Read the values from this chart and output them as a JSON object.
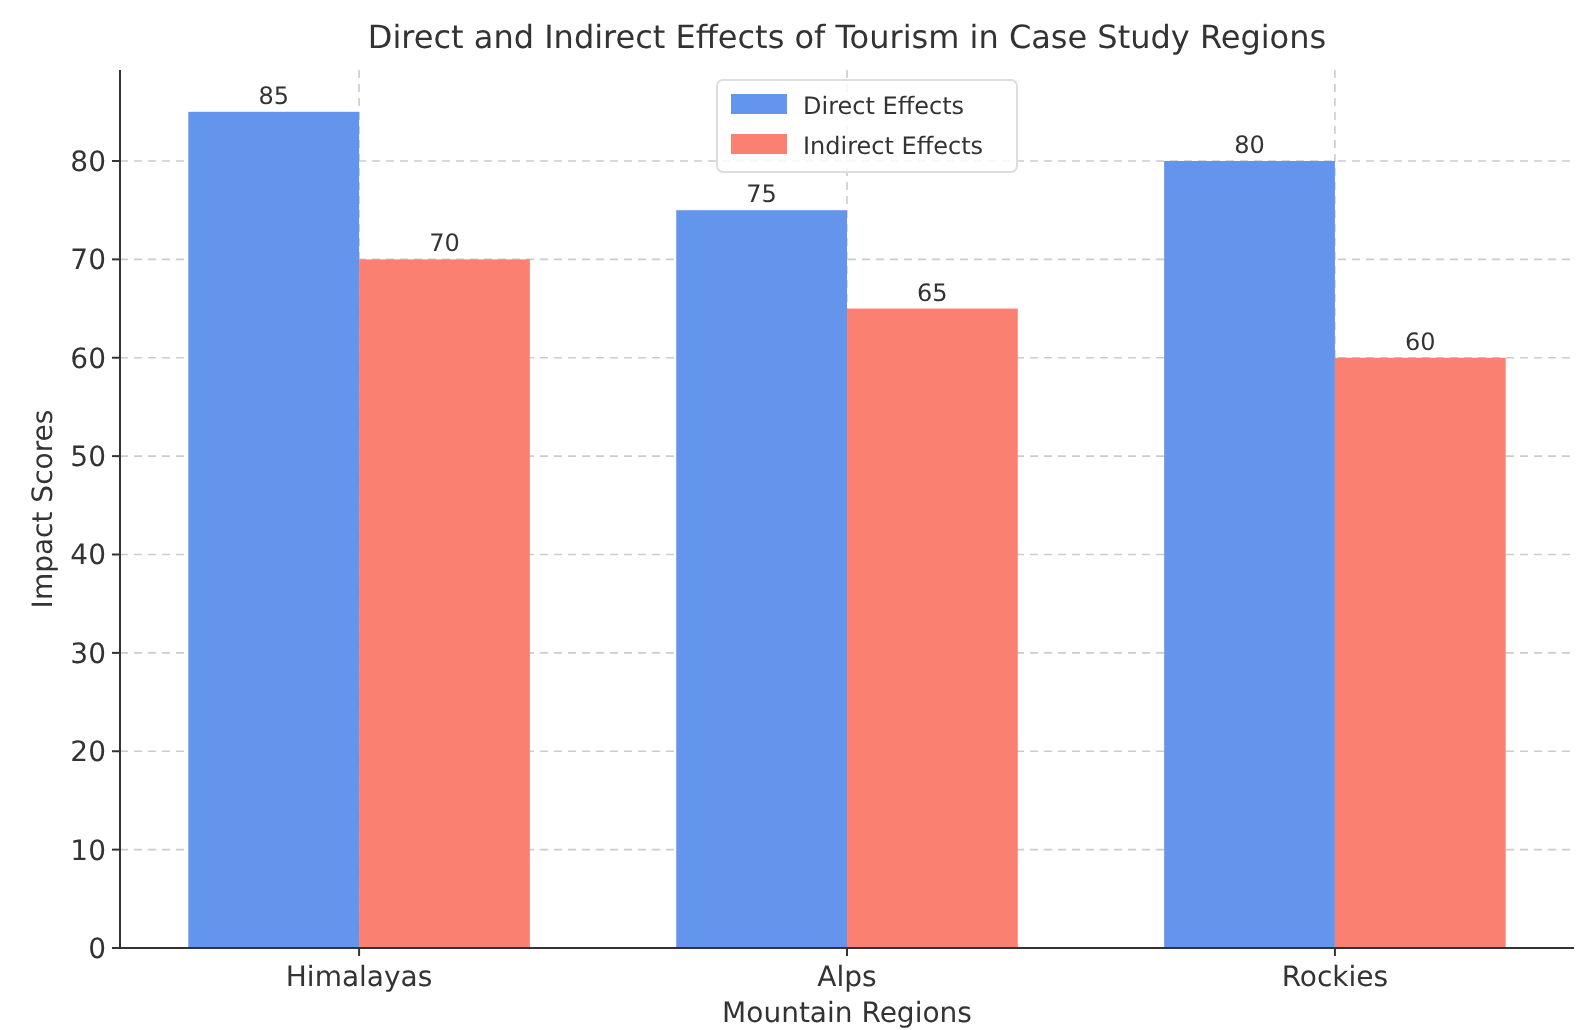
{
  "chart_data": {
    "type": "bar",
    "title": "Direct and Indirect Effects of Tourism in Case Study Regions",
    "xlabel": "Mountain Regions",
    "ylabel": "Impact Scores",
    "categories": [
      "Himalayas",
      "Alps",
      "Rockies"
    ],
    "series": [
      {
        "name": "Direct Effects",
        "color": "#6495ed",
        "values": [
          85,
          75,
          80
        ]
      },
      {
        "name": "Indirect Effects",
        "color": "#fa8072",
        "values": [
          70,
          65,
          60
        ]
      }
    ],
    "ylim": [
      0,
      89.25
    ],
    "yticks": [
      0,
      10,
      20,
      30,
      40,
      50,
      60,
      70,
      80
    ],
    "grid": true,
    "legend": "top",
    "data_labels": true
  }
}
